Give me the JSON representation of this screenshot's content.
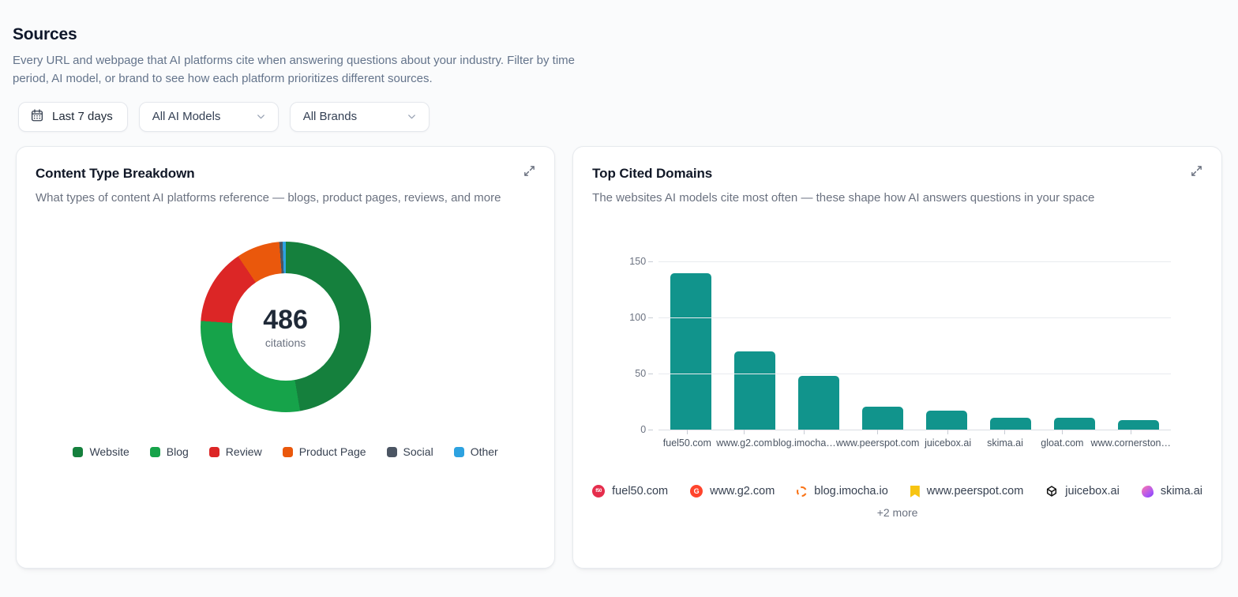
{
  "page": {
    "title": "Sources",
    "description": "Every URL and webpage that AI platforms cite when answering questions about your industry. Filter by time period, AI model, or brand to see how each platform prioritizes different sources."
  },
  "filters": {
    "date_range": {
      "label": "Last 7 days",
      "icon": "calendar-icon"
    },
    "model_select": {
      "value": "All AI Models",
      "icon": "chevron-down-icon"
    },
    "brand_select": {
      "value": "All Brands",
      "icon": "chevron-down-icon"
    }
  },
  "cards": {
    "content_type": {
      "title": "Content Type Breakdown",
      "subtitle": "What types of content AI platforms reference — blogs, product pages, reviews, and more",
      "center_value": "486",
      "center_label": "citations",
      "expand_icon": "expand-icon"
    },
    "top_domains": {
      "title": "Top Cited Domains",
      "subtitle": "The websites AI models cite most often — these shape how AI answers questions in your space",
      "expand_icon": "expand-icon"
    }
  },
  "chart_data": [
    {
      "type": "pie",
      "title": "Content Type Breakdown",
      "total": 486,
      "center_value": 486,
      "center_label": "citations",
      "legend_position": "bottom",
      "segments": [
        {
          "label": "Website",
          "value": 230,
          "color": "#15803d"
        },
        {
          "label": "Blog",
          "value": 140,
          "color": "#16a34a"
        },
        {
          "label": "Review",
          "value": 70,
          "color": "#dc2626"
        },
        {
          "label": "Product Page",
          "value": 40,
          "color": "#ea580c"
        },
        {
          "label": "Social",
          "value": 3,
          "color": "#4b5563"
        },
        {
          "label": "Other",
          "value": 3,
          "color": "#2da2e0"
        }
      ]
    },
    {
      "type": "bar",
      "title": "Top Cited Domains",
      "categories": [
        "fuel50.com",
        "www.g2.com",
        "blog.imocha…",
        "www.peerspot.com",
        "juicebox.ai",
        "skima.ai",
        "gloat.com",
        "www.cornerston…"
      ],
      "values": [
        140,
        70,
        48,
        21,
        17,
        11,
        11,
        9
      ],
      "bar_color": "#11948c",
      "xlabel": "",
      "ylabel": "",
      "ylim": [
        0,
        150
      ],
      "yticks": [
        0,
        50,
        100,
        150
      ],
      "grid": true,
      "legend_position": "none"
    }
  ],
  "domain_legend": {
    "items": [
      {
        "label": "fuel50.com",
        "icon": "fuel50-favicon",
        "color": "#e52d4c",
        "glyph": "f50"
      },
      {
        "label": "www.g2.com",
        "icon": "g2-favicon",
        "color": "#ff442c",
        "glyph": "G"
      },
      {
        "label": "blog.imocha.io",
        "icon": "imocha-favicon",
        "color": "#f97316",
        "glyph": ""
      },
      {
        "label": "www.peerspot.com",
        "icon": "peerspot-favicon",
        "color": "#f7c411",
        "glyph": ""
      },
      {
        "label": "juicebox.ai",
        "icon": "juicebox-favicon",
        "color": "#111111",
        "glyph": ""
      },
      {
        "label": "skima.ai",
        "icon": "skima-favicon",
        "color": "#a855f7",
        "glyph": ""
      }
    ],
    "more_label": "+2 more"
  }
}
